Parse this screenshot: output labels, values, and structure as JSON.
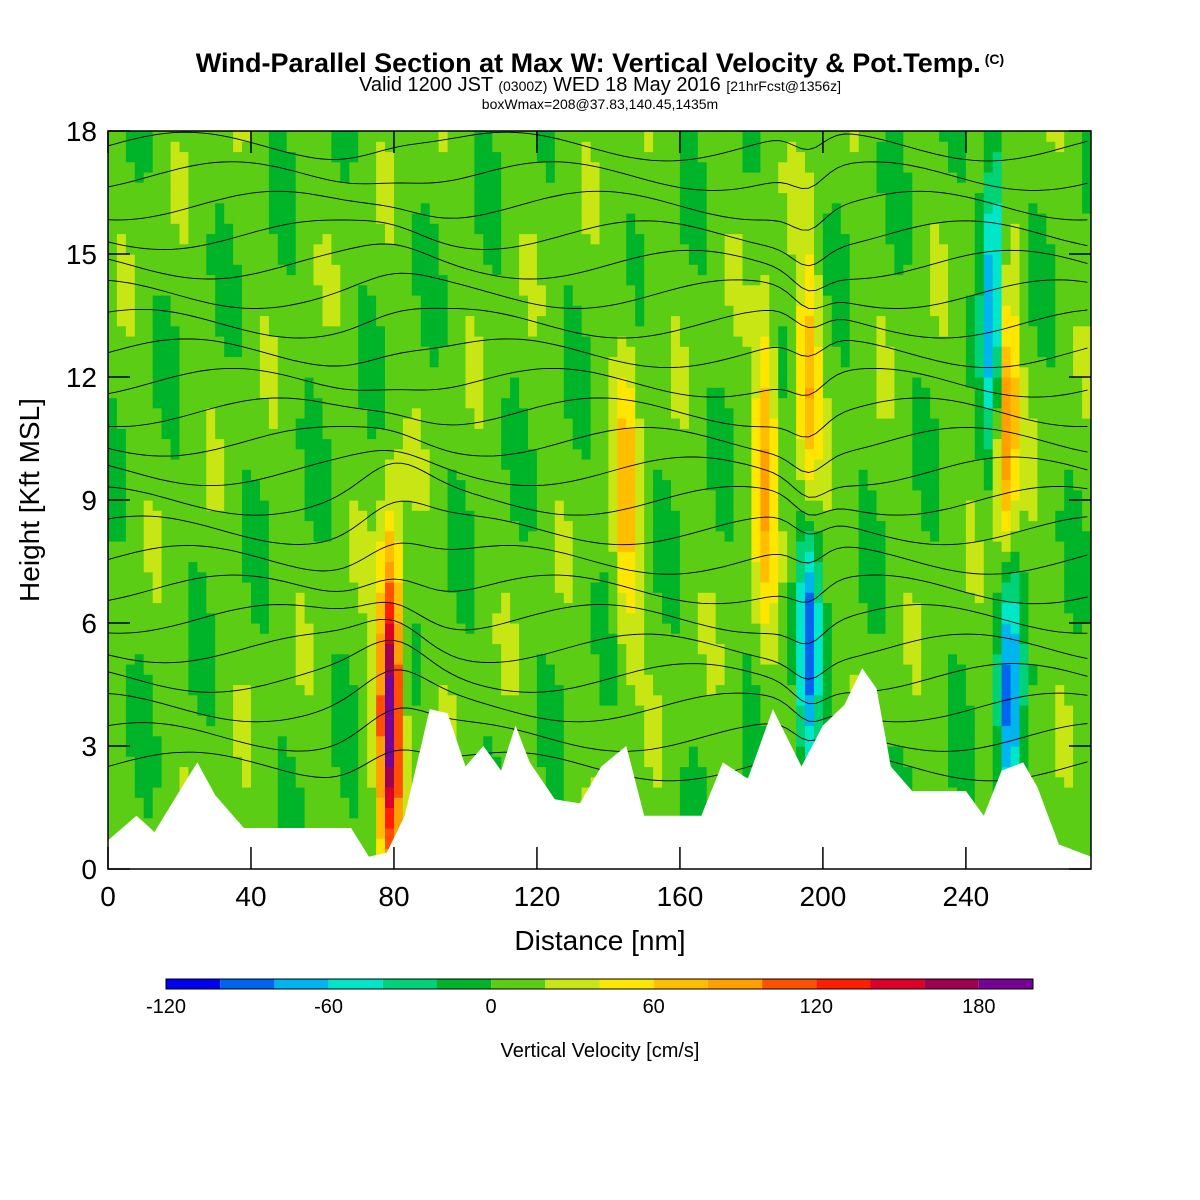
{
  "header": {
    "title": "Wind-Parallel Section at Max W: Vertical Velocity & Pot.Temp.",
    "title_mark": "(C)",
    "valid_prefix": "Valid 1200 JST",
    "valid_utc": "(0300Z)",
    "valid_date": "WED 18 May 2016",
    "forecast": "[21hrFcst@1356z]",
    "box_info": "boxWmax=208@37.83,140.45,1435m"
  },
  "colors": {
    "scale": [
      "#0000f0",
      "#0064f0",
      "#00b4f0",
      "#00e6c8",
      "#00d278",
      "#00b42a",
      "#5acd14",
      "#c8e614",
      "#ffe600",
      "#ffbe00",
      "#ffa000",
      "#ff5000",
      "#ff1e00",
      "#dc0028",
      "#a00050",
      "#780096"
    ],
    "terrain": "#ffffff",
    "contour": "#000000"
  },
  "chart_data": {
    "type": "heatmap",
    "xlabel": "Distance [nm]",
    "ylabel": "Height [Kft MSL]",
    "xlim": [
      0,
      275
    ],
    "ylim": [
      0,
      18
    ],
    "xticks": [
      0,
      40,
      80,
      120,
      160,
      200,
      240
    ],
    "yticks": [
      0,
      3,
      6,
      9,
      12,
      15,
      18
    ],
    "colorbar": {
      "label": "Vertical Velocity [cm/s]",
      "bounds": [
        -120,
        200
      ],
      "step": 20,
      "tick_labels": [
        -120,
        -60,
        0,
        60,
        120,
        180
      ]
    },
    "terrain_profile_kft": [
      [
        0,
        0.7
      ],
      [
        8,
        1.3
      ],
      [
        13,
        0.9
      ],
      [
        20,
        1.9
      ],
      [
        25,
        2.6
      ],
      [
        30,
        1.8
      ],
      [
        38,
        1.0
      ],
      [
        68,
        1.0
      ],
      [
        73,
        0.3
      ],
      [
        78,
        0.4
      ],
      [
        83,
        1.3
      ],
      [
        90,
        3.9
      ],
      [
        95,
        3.8
      ],
      [
        100,
        2.5
      ],
      [
        105,
        3.0
      ],
      [
        110,
        2.4
      ],
      [
        114,
        3.5
      ],
      [
        118,
        2.6
      ],
      [
        125,
        1.7
      ],
      [
        132,
        1.6
      ],
      [
        138,
        2.5
      ],
      [
        145,
        3.0
      ],
      [
        150,
        1.3
      ],
      [
        166,
        1.3
      ],
      [
        172,
        2.6
      ],
      [
        179,
        2.2
      ],
      [
        186,
        3.9
      ],
      [
        194,
        2.5
      ],
      [
        200,
        3.5
      ],
      [
        206,
        4.0
      ],
      [
        211,
        4.9
      ],
      [
        215,
        4.4
      ],
      [
        219,
        2.5
      ],
      [
        225,
        1.9
      ],
      [
        240,
        1.9
      ],
      [
        245,
        1.3
      ],
      [
        250,
        2.4
      ],
      [
        256,
        2.6
      ],
      [
        260,
        2.0
      ],
      [
        266,
        0.6
      ],
      [
        275,
        0.3
      ]
    ],
    "velocity_features": [
      {
        "x": 79,
        "y": 4.0,
        "max_cm_s": 186
      },
      {
        "x": 145,
        "y": 9.0,
        "max_cm_s": 60
      },
      {
        "x": 184,
        "y": 10.0,
        "max_cm_s": 70
      },
      {
        "x": 196,
        "y": 11.0,
        "max_cm_s": 80
      },
      {
        "x": 196,
        "y": 6.0,
        "min_cm_s": -100
      },
      {
        "x": 251,
        "y": 11.0,
        "max_cm_s": 110
      },
      {
        "x": 248,
        "y": 14.0,
        "min_cm_s": -110
      },
      {
        "x": 252,
        "y": 4.0,
        "min_cm_s": -100
      }
    ]
  }
}
